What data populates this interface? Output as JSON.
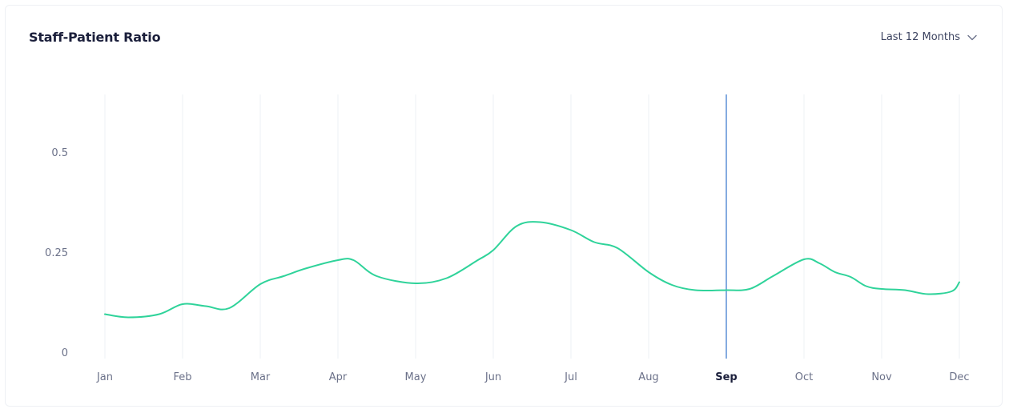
{
  "card": {
    "title": "Staff-Patient Ratio",
    "range_label": "Last 12 Months",
    "range_icon": "chevron-down-icon"
  },
  "colors": {
    "line": "#2fd39a",
    "marker": "#5b8fd6",
    "grid": "#eef0f4",
    "axis_text": "#6b7189",
    "active_text": "#1b1f3b"
  },
  "chart_data": {
    "type": "line",
    "title": "Staff-Patient Ratio",
    "xlabel": "",
    "ylabel": "",
    "categories": [
      "Jan",
      "Feb",
      "Mar",
      "Apr",
      "May",
      "Jun",
      "Jul",
      "Aug",
      "Sep",
      "Oct",
      "Nov",
      "Dec"
    ],
    "x": [
      0,
      0.3,
      0.7,
      1,
      1.3,
      1.6,
      2,
      2.3,
      2.6,
      3,
      3.2,
      3.5,
      4,
      4.4,
      4.8,
      5,
      5.3,
      5.6,
      6,
      6.3,
      6.6,
      7,
      7.3,
      7.6,
      8,
      8.3,
      8.6,
      9,
      9.2,
      9.4,
      9.6,
      9.8,
      10,
      10.3,
      10.6,
      10.9,
      11
    ],
    "values": [
      0.095,
      0.087,
      0.095,
      0.12,
      0.115,
      0.11,
      0.17,
      0.19,
      0.21,
      0.23,
      0.23,
      0.19,
      0.172,
      0.185,
      0.23,
      0.255,
      0.315,
      0.325,
      0.305,
      0.275,
      0.26,
      0.2,
      0.168,
      0.155,
      0.155,
      0.158,
      0.19,
      0.232,
      0.222,
      0.2,
      0.188,
      0.165,
      0.158,
      0.155,
      0.145,
      0.152,
      0.175
    ],
    "yticks": [
      "0",
      "0.25",
      "0.5"
    ],
    "ylim": [
      0,
      0.65
    ],
    "highlight_category": "Sep",
    "grid": "vertical",
    "legend": "none"
  }
}
